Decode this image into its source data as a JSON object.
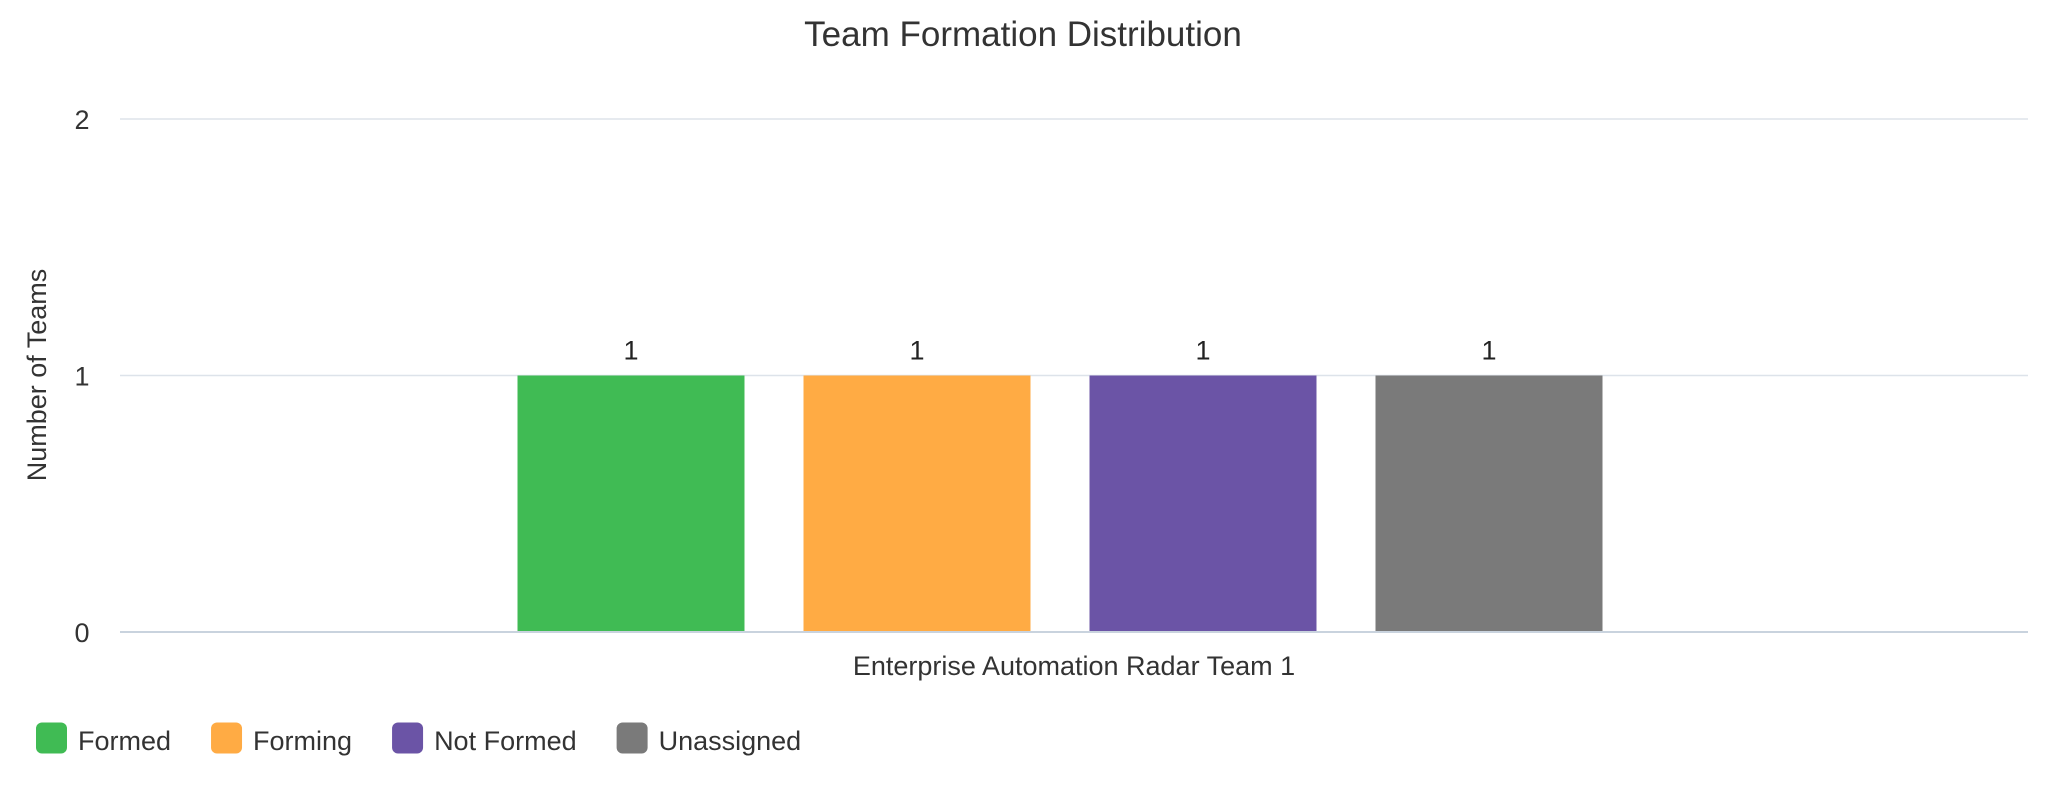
{
  "chart_data": {
    "type": "bar",
    "title": "Team Formation Distribution",
    "xlabel": "",
    "ylabel": "Number of Teams",
    "categories": [
      "Enterprise Automation Radar Team 1"
    ],
    "series": [
      {
        "name": "Formed",
        "values": [
          1
        ],
        "color": "#40bb54"
      },
      {
        "name": "Forming",
        "values": [
          1
        ],
        "color": "#ffab44"
      },
      {
        "name": "Not Formed",
        "values": [
          1
        ],
        "color": "#6b54a6"
      },
      {
        "name": "Unassigned",
        "values": [
          1
        ],
        "color": "#7a7a7a"
      }
    ],
    "ylim": [
      0,
      2
    ],
    "yticks": [
      0,
      1,
      2
    ],
    "grid": true,
    "data_labels": true,
    "legend_position": "bottom-left"
  }
}
